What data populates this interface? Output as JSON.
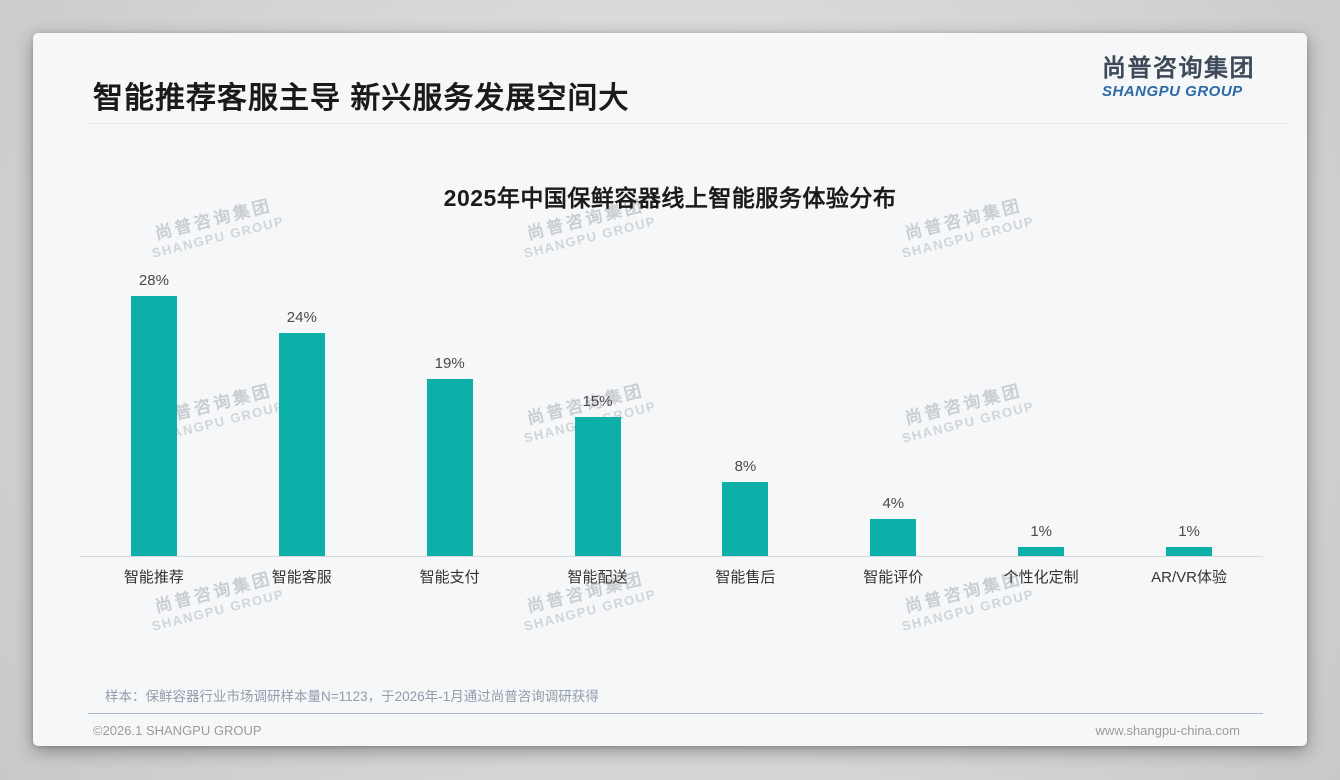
{
  "header": {
    "title": "智能推荐客服主导 新兴服务发展空间大"
  },
  "logo": {
    "cn": "尚普咨询集团",
    "en": "SHANGPU GROUP"
  },
  "chart_data": {
    "type": "bar",
    "title": "2025年中国保鲜容器线上智能服务体验分布",
    "categories": [
      "智能推荐",
      "智能客服",
      "智能支付",
      "智能配送",
      "智能售后",
      "智能评价",
      "个性化定制",
      "AR/VR体验"
    ],
    "values": [
      28,
      24,
      19,
      15,
      8,
      4,
      1,
      1
    ],
    "unit": "%",
    "xlabel": "",
    "ylabel": "",
    "ylim": [
      0,
      30
    ],
    "grid": false,
    "legend": false,
    "bar_color": "#0CB0A8"
  },
  "watermark": {
    "cn": "尚普咨询集团",
    "en": "SHANGPU GROUP"
  },
  "footnote": "样本：保鲜容器行业市场调研样本量N=1123，于2026年-1月通过尚普咨询调研获得",
  "footer": {
    "left": "©2026.1 SHANGPU GROUP",
    "right": "www.shangpu-china.com"
  },
  "colors": {
    "bar": "#0CB0A8",
    "logo_blue": "#2B6AA6",
    "logo_dark": "#3E4A59",
    "title_text": "#1A1A1A",
    "note_text": "#8F9DAC",
    "axis_line": "#D8D8D8"
  }
}
